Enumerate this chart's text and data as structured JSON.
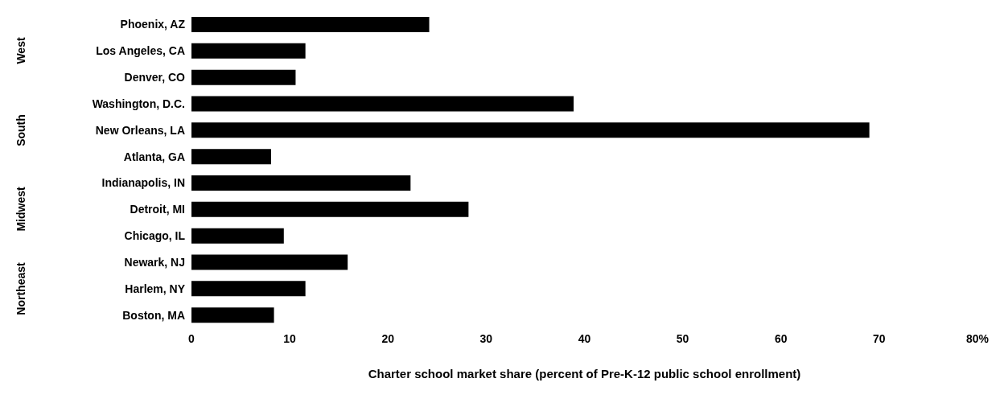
{
  "chart_data": {
    "type": "bar",
    "orientation": "horizontal",
    "categories": [
      "Phoenix, AZ",
      "Los Angeles, CA",
      "Denver, CO",
      "Washington, D.C.",
      "New Orleans, LA",
      "Atlanta, GA",
      "Indianapolis, IN",
      "Detroit, MI",
      "Chicago, IL",
      "Newark, NJ",
      "Harlem, NY",
      "Boston, MA"
    ],
    "values": [
      24.2,
      11.6,
      10.6,
      38.9,
      69,
      8.1,
      22.3,
      28.2,
      9.4,
      15.9,
      11.6,
      8.4
    ],
    "color": "#000000",
    "xlim": [
      0,
      80
    ],
    "xticks": [
      0,
      10,
      20,
      30,
      40,
      50,
      60,
      70,
      {
        "value": 80,
        "label": "80%"
      }
    ],
    "xlabel": "Charter school market share (percent of Pre-K-12 public school enrollment)",
    "annotations": [
      "West",
      "South",
      "Midwest",
      "Northeast"
    ],
    "grid": false,
    "legend": false
  }
}
